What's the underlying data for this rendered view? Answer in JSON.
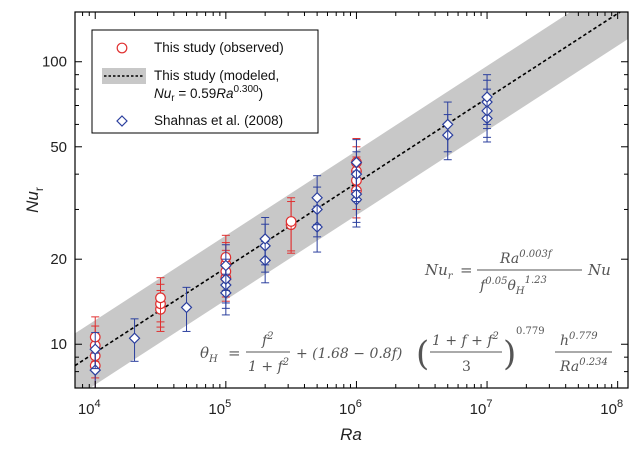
{
  "chart_data": {
    "type": "scatter",
    "title": "",
    "xlabel": "Ra",
    "ylabel_main": "Nu",
    "ylabel_sub": "r",
    "x_scale": "log",
    "y_scale": "log",
    "xlim": [
      7000,
      120000000
    ],
    "ylim": [
      7,
      150
    ],
    "x_ticks": [
      {
        "value": 10000,
        "base": "10",
        "exp": "4"
      },
      {
        "value": 100000,
        "base": "10",
        "exp": "5"
      },
      {
        "value": 1000000,
        "base": "10",
        "exp": "6"
      },
      {
        "value": 10000000,
        "base": "10",
        "exp": "7"
      },
      {
        "value": 100000000,
        "base": "10",
        "exp": "8"
      }
    ],
    "y_ticks": [
      {
        "value": 10,
        "label": "10"
      },
      {
        "value": 20,
        "label": "20"
      },
      {
        "value": 50,
        "label": "50"
      },
      {
        "value": 100,
        "label": "100"
      }
    ],
    "legend": {
      "position": "top-left",
      "observed_label": "This study (observed)",
      "modeled_label_line1": "This study (modeled,",
      "modeled_nu": "Nu",
      "modeled_sub": "r",
      "modeled_eq": " = 0.59",
      "modeled_ra": "Ra",
      "modeled_exp": "0.300",
      "modeled_close": ")",
      "shahnas_label": "Shahnas et al. (2008)"
    },
    "model": {
      "coefficient": 0.59,
      "exponent": 0.3,
      "band_factor": 1.3
    },
    "colors": {
      "observed": "#e03030",
      "shahnas": "#2b3f9e",
      "band": "#c8c8c8",
      "model_line": "#000000"
    },
    "series": [
      {
        "name": "This study (observed)",
        "marker": "circle",
        "points": [
          {
            "x": 10000,
            "y": 8.4,
            "err": 1.4
          },
          {
            "x": 10000,
            "y": 9.1,
            "err": 1.5
          },
          {
            "x": 10000,
            "y": 9.9,
            "err": 1.7
          },
          {
            "x": 10000,
            "y": 10.6,
            "err": 1.9
          },
          {
            "x": 31600,
            "y": 13.3,
            "err": 2.2
          },
          {
            "x": 31600,
            "y": 13.9,
            "err": 2.4
          },
          {
            "x": 31600,
            "y": 14.6,
            "err": 2.6
          },
          {
            "x": 100000,
            "y": 17.2,
            "err": 3.0
          },
          {
            "x": 100000,
            "y": 18.1,
            "err": 3.4
          },
          {
            "x": 100000,
            "y": 19.2,
            "err": 3.7
          },
          {
            "x": 100000,
            "y": 20.3,
            "err": 4.0
          },
          {
            "x": 316000,
            "y": 26.5,
            "err": 5.5
          },
          {
            "x": 316000,
            "y": 27.2,
            "err": 5.8
          },
          {
            "x": 1000000,
            "y": 35.0,
            "err": 7.0
          },
          {
            "x": 1000000,
            "y": 38.0,
            "err": 8.0
          },
          {
            "x": 1000000,
            "y": 41.0,
            "err": 9.0
          },
          {
            "x": 1000000,
            "y": 44.0,
            "err": 9.5
          }
        ]
      },
      {
        "name": "Shahnas et al. (2008)",
        "marker": "diamond",
        "points": [
          {
            "x": 10000,
            "y": 8.1,
            "err": 1.2
          },
          {
            "x": 10000,
            "y": 9.6,
            "err": 1.4
          },
          {
            "x": 20000,
            "y": 10.5,
            "err": 1.8
          },
          {
            "x": 50000,
            "y": 13.5,
            "err": 2.4
          },
          {
            "x": 100000,
            "y": 15.2,
            "err": 2.5
          },
          {
            "x": 100000,
            "y": 16.2,
            "err": 2.8
          },
          {
            "x": 100000,
            "y": 17.0,
            "err": 3.0
          },
          {
            "x": 100000,
            "y": 19.0,
            "err": 3.5
          },
          {
            "x": 200000,
            "y": 19.8,
            "err": 3.3
          },
          {
            "x": 200000,
            "y": 22.3,
            "err": 4.3
          },
          {
            "x": 200000,
            "y": 23.6,
            "err": 4.5
          },
          {
            "x": 500000,
            "y": 26.0,
            "err": 4.8
          },
          {
            "x": 500000,
            "y": 30.0,
            "err": 6.0
          },
          {
            "x": 500000,
            "y": 33.0,
            "err": 6.5
          },
          {
            "x": 1000000,
            "y": 32.5,
            "err": 6.5
          },
          {
            "x": 1000000,
            "y": 34.0,
            "err": 7.0
          },
          {
            "x": 1000000,
            "y": 40.0,
            "err": 8.0
          },
          {
            "x": 1000000,
            "y": 44.0,
            "err": 9.0
          },
          {
            "x": 5000000,
            "y": 55.0,
            "err": 10.0
          },
          {
            "x": 5000000,
            "y": 60.0,
            "err": 12.0
          },
          {
            "x": 10000000,
            "y": 63.0,
            "err": 11.0
          },
          {
            "x": 10000000,
            "y": 67.0,
            "err": 13.0
          },
          {
            "x": 10000000,
            "y": 72.0,
            "err": 14.0
          },
          {
            "x": 10000000,
            "y": 75.0,
            "err": 15.0
          }
        ]
      }
    ],
    "annotations": {
      "eq1_lhs_nu": "Nu",
      "eq1_lhs_sub": "r",
      "eq1_eq": "=",
      "eq1_num_ra": "Ra",
      "eq1_num_exp": "0.003f",
      "eq1_den_f": "f",
      "eq1_den_fexp": "0.05",
      "eq1_den_theta": "θ",
      "eq1_den_sub": "H",
      "eq1_den_exp": "1.23",
      "eq1_nu": "Nu",
      "eq2_lhs_theta": "θ",
      "eq2_lhs_sub": "H",
      "eq2_eq": "=",
      "eq2_frac1_num": "f",
      "eq2_frac1_num_exp": "2",
      "eq2_frac1_den": "1 + f",
      "eq2_frac1_den_exp": "2",
      "eq2_plus_term": "+ (1.68 − 0.8f)",
      "eq2_paren_num": "1 + f + f",
      "eq2_paren_num_exp": "2",
      "eq2_paren_den": "3",
      "eq2_paren_exp": "0.779",
      "eq2_h": "h",
      "eq2_h_exp": "0.779",
      "eq2_den_ra": "Ra",
      "eq2_den_exp": "0.234"
    }
  }
}
